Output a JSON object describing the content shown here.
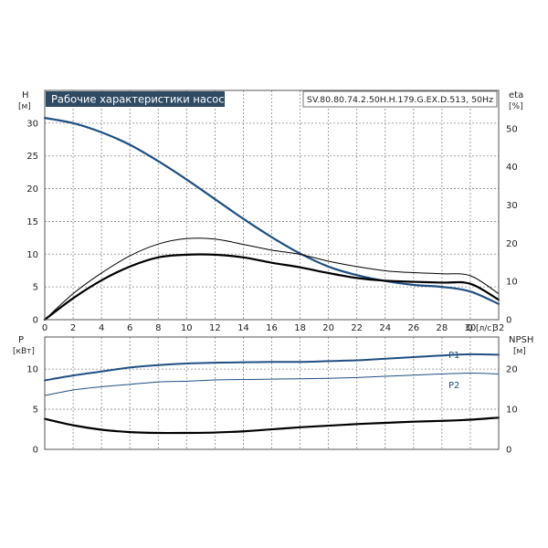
{
  "title": "Рабочие характеристики насоса",
  "model_label": "SV.80.80.74.2.50H.H.179.G.EX.D.513, 50Hz",
  "colors": {
    "title_bg": "#2f4a63",
    "title_fg": "#ffffff",
    "blue": "#1f4f82",
    "black": "#000000"
  },
  "chart_data": [
    {
      "type": "line",
      "name": "top",
      "x_axis": {
        "label": "Q",
        "unit": "[л/с]",
        "range": [
          0,
          32
        ],
        "ticks": [
          "0",
          "2",
          "4",
          "6",
          "8",
          "10",
          "12",
          "14",
          "16",
          "18",
          "20",
          "22",
          "24",
          "26",
          "28",
          "30",
          "32"
        ]
      },
      "y_left": {
        "label": "H",
        "unit": "[м]",
        "range": [
          0,
          35
        ],
        "ticks": [
          "0",
          "5",
          "10",
          "15",
          "20",
          "25",
          "30"
        ]
      },
      "y_right": {
        "label": "eta",
        "unit": "[%]",
        "range": [
          0,
          60
        ],
        "ticks": [
          "0",
          "10",
          "20",
          "30",
          "40",
          "50"
        ]
      },
      "grid": true,
      "series": [
        {
          "axis": "left",
          "color": "#1f4f82",
          "width": 2.2,
          "x": [
            0,
            2,
            4,
            6,
            8,
            10,
            12,
            14,
            16,
            18,
            20,
            22,
            24,
            26,
            28,
            30,
            32
          ],
          "y": [
            30.8,
            30.0,
            28.6,
            26.7,
            24.2,
            21.4,
            18.4,
            15.4,
            12.6,
            10.1,
            8.1,
            6.8,
            5.9,
            5.3,
            5.0,
            4.3,
            2.4
          ]
        },
        {
          "axis": "right",
          "color": "#000000",
          "width": 1.0,
          "x": [
            0,
            2,
            4,
            6,
            8,
            10,
            12,
            14,
            16,
            18,
            20,
            22,
            24,
            26,
            28,
            30,
            32
          ],
          "y": [
            0,
            6.8,
            12.2,
            16.7,
            19.8,
            21.2,
            21.1,
            19.7,
            18.2,
            17.1,
            15.3,
            13.9,
            12.8,
            12.3,
            12.0,
            11.5,
            6.8
          ]
        },
        {
          "axis": "right",
          "color": "#000000",
          "width": 2.2,
          "x": [
            0,
            2,
            4,
            6,
            8,
            10,
            12,
            14,
            16,
            18,
            20,
            22,
            24,
            26,
            28,
            30,
            32
          ],
          "y": [
            0,
            5.6,
            10.3,
            13.9,
            16.3,
            17.0,
            17.0,
            16.3,
            14.9,
            13.7,
            12.2,
            10.9,
            10.2,
            9.9,
            9.7,
            9.4,
            5.2
          ]
        }
      ]
    },
    {
      "type": "line",
      "name": "bottom",
      "x_axis": {
        "range": [
          0,
          32
        ]
      },
      "y_left": {
        "label": "P",
        "unit": "[кВт]",
        "range": [
          0,
          14
        ],
        "ticks": [
          "0",
          "5",
          "10"
        ]
      },
      "y_right": {
        "label": "NPSH",
        "unit": "[м]",
        "range": [
          0,
          28
        ],
        "ticks": [
          "0",
          "10",
          "20"
        ]
      },
      "grid": true,
      "series": [
        {
          "name": "P1",
          "axis": "left",
          "color": "#1f4f82",
          "width": 2.0,
          "x": [
            0,
            2,
            4,
            6,
            8,
            10,
            12,
            14,
            16,
            18,
            20,
            22,
            24,
            26,
            28,
            30,
            32
          ],
          "y": [
            8.6,
            9.2,
            9.7,
            10.2,
            10.5,
            10.7,
            10.8,
            10.85,
            10.9,
            10.9,
            11.0,
            11.1,
            11.3,
            11.5,
            11.7,
            11.85,
            11.8
          ]
        },
        {
          "name": "P2",
          "axis": "left",
          "color": "#1f4f82",
          "width": 1.0,
          "x": [
            0,
            2,
            4,
            6,
            8,
            10,
            12,
            14,
            16,
            18,
            20,
            22,
            24,
            26,
            28,
            30,
            32
          ],
          "y": [
            6.7,
            7.4,
            7.8,
            8.1,
            8.4,
            8.5,
            8.65,
            8.7,
            8.75,
            8.8,
            8.85,
            8.95,
            9.1,
            9.25,
            9.4,
            9.5,
            9.4
          ]
        },
        {
          "axis": "right",
          "color": "#000000",
          "width": 2.2,
          "x": [
            0,
            2,
            4,
            6,
            8,
            10,
            12,
            14,
            16,
            18,
            20,
            22,
            24,
            26,
            28,
            30,
            32
          ],
          "y": [
            7.6,
            6.0,
            4.9,
            4.3,
            4.1,
            4.1,
            4.2,
            4.5,
            5.0,
            5.5,
            5.9,
            6.3,
            6.6,
            6.9,
            7.1,
            7.4,
            7.9
          ]
        }
      ]
    }
  ]
}
